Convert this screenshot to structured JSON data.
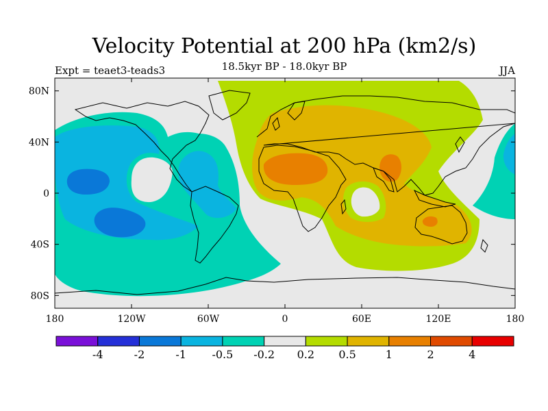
{
  "title": "Velocity Potential at 200 hPa (km2/s)",
  "subtitle": "18.5kyr BP - 18.0kyr BP",
  "left_string": "Expt = teaet3-teads3",
  "right_string": "JJA",
  "colors": {
    "ocean_bg": "#e8e8e8",
    "coast": "#000000"
  },
  "map": {
    "lon_ticks": [
      {
        "value": -180,
        "label": "180"
      },
      {
        "value": -120,
        "label": "120W"
      },
      {
        "value": -60,
        "label": "60W"
      },
      {
        "value": 0,
        "label": "0"
      },
      {
        "value": 60,
        "label": "60E"
      },
      {
        "value": 120,
        "label": "120E"
      },
      {
        "value": 180,
        "label": "180"
      }
    ],
    "lat_ticks": [
      {
        "value": 80,
        "label": "80N"
      },
      {
        "value": 40,
        "label": "40N"
      },
      {
        "value": 0,
        "label": "0"
      },
      {
        "value": -40,
        "label": "40S"
      },
      {
        "value": -80,
        "label": "80S"
      }
    ]
  },
  "colorbar": {
    "colors": [
      "#7a10d8",
      "#2430d8",
      "#0a78d8",
      "#0ab4e0",
      "#00d2b4",
      "#e8e8e8",
      "#b4dc00",
      "#e0b400",
      "#e88000",
      "#e04a00",
      "#e80000"
    ],
    "labels": [
      "-4",
      "-2",
      "-1",
      "-0.5",
      "-0.2",
      "0.2",
      "0.5",
      "1",
      "2",
      "4"
    ]
  }
}
